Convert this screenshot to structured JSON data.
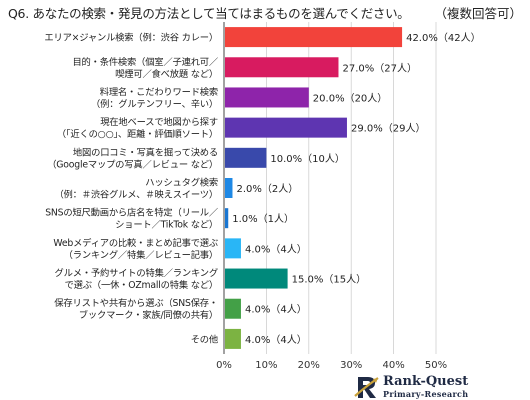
{
  "title": "Q6. あなたの検索・発見の方法として当てはまるものを選んでください。",
  "title_note": "（複数回答可）",
  "logo": {
    "name": "Rank-Quest",
    "subtitle": "Primary-Research"
  },
  "chart_data": {
    "type": "bar",
    "orientation": "horizontal",
    "title": "Q6. あなたの検索・発見の方法として当てはまるものを選んでください。（複数回答可）",
    "xlabel": "",
    "ylabel": "",
    "xlim": [
      0,
      50
    ],
    "x_tick_labels": [
      "0%",
      "10%",
      "20%",
      "30%",
      "40%",
      "50%"
    ],
    "grid": "vertical",
    "legend": "none",
    "categories": [
      [
        "エリア×ジャンル検索（例：渋谷 カレー）"
      ],
      [
        "目的・条件検索（個室／子連れ可／",
        "喫煙可／食べ放題 など）"
      ],
      [
        "料理名・こだわりワード検索",
        "（例：グルテンフリー、辛い）"
      ],
      [
        "現在地ベースで地図から探す",
        "（「近くの○○」、距離・評価順ソート）"
      ],
      [
        "地図の口コミ・写真を掘って決める",
        "（Googleマップの写真／レビュー など）"
      ],
      [
        "ハッシュタグ検索",
        "（例：＃渋谷グルメ、＃映えスイーツ）"
      ],
      [
        "SNSの短尺動画から店名を特定（リール／",
        "ショート／TikTok など）"
      ],
      [
        "Webメディアの比較・まとめ記事で選ぶ",
        "（ランキング／特集／レビュー記事）"
      ],
      [
        "グルメ・予約サイトの特集／ランキング",
        "で選ぶ（一休・OZmallの特集 など）"
      ],
      [
        "保存リストや共有から選ぶ（SNS保存・",
        "ブックマーク・家族/同僚の共有）"
      ],
      [
        "その他"
      ]
    ],
    "values": [
      42.0,
      27.0,
      20.0,
      29.0,
      10.0,
      2.0,
      1.0,
      4.0,
      15.0,
      4.0,
      4.0
    ],
    "counts": [
      42,
      27,
      20,
      29,
      10,
      2,
      1,
      4,
      15,
      4,
      4
    ],
    "data_labels": [
      "42.0%（42人）",
      "27.0%（27人）",
      "20.0%（20人）",
      "29.0%（29人）",
      "10.0%（10人）",
      "2.0%（2人）",
      "1.0%（1人）",
      "4.0%（4人）",
      "15.0%（15人）",
      "4.0%（4人）",
      "4.0%（4人）"
    ],
    "colors": [
      "#f2433b",
      "#d81b60",
      "#8e24aa",
      "#5e35b1",
      "#3949ab",
      "#1e88e5",
      "#1976d2",
      "#29b6f6",
      "#00897b",
      "#43a047",
      "#7cb342"
    ]
  }
}
